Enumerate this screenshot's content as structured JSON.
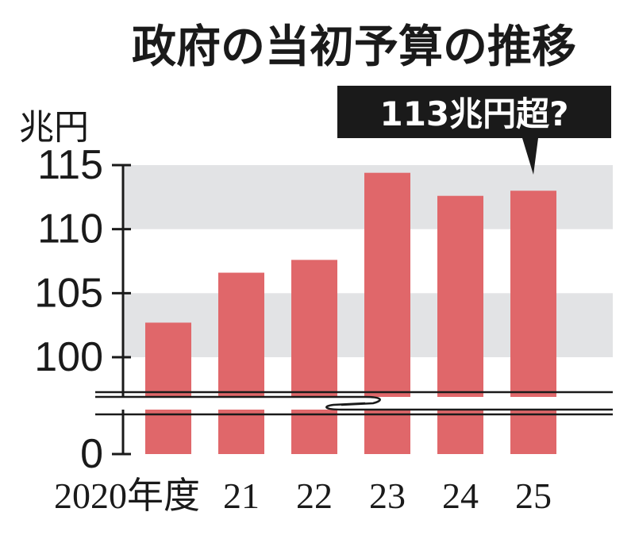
{
  "chart_data": {
    "type": "bar",
    "title": "政府の当初予算の推移",
    "ylabel": "兆円",
    "categories": [
      "2020年度",
      "21",
      "22",
      "23",
      "24",
      "25"
    ],
    "values": [
      102.7,
      106.6,
      107.6,
      114.4,
      112.6,
      113
    ],
    "ylim": [
      0,
      115
    ],
    "axis_break": [
      0,
      96
    ],
    "yticks": [
      0,
      100,
      105,
      110,
      115
    ],
    "ytick_labels": [
      "0",
      "100",
      "105",
      "110",
      "115"
    ],
    "grid_bands": [
      [
        100,
        105
      ],
      [
        110,
        115
      ]
    ],
    "annotation": "113兆円超?",
    "annotation_target": "25",
    "bar_color": "#e0676a",
    "band_color": "#e2e3e5",
    "text_color": "#1a1a1a"
  }
}
